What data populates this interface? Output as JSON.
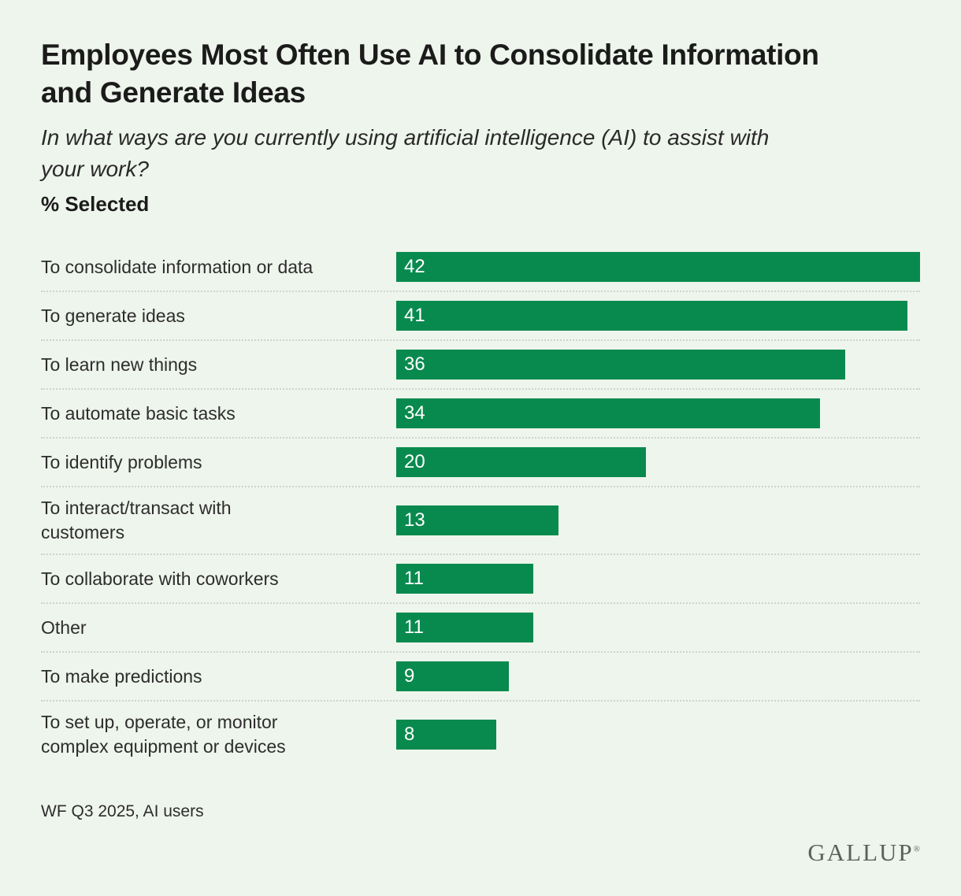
{
  "page": {
    "title_lines": [
      "Employees Most Often Use AI to Consolidate Information",
      "and Generate Ideas"
    ],
    "subtitle_lines": [
      "In what ways are you currently using artificial intelligence (AI) to assist with",
      "your work?"
    ],
    "unit_label": "% Selected",
    "footnote": "WF Q3 2025, AI users",
    "brand": "GALLUP",
    "brand_registered": "®"
  },
  "colors": {
    "background": "#eef5ec",
    "bar": "#088a4e",
    "title_text": "#1b1b1b",
    "label_text": "#2d2d2d",
    "value_text": "#ffffff",
    "separator": "#ccd4cb",
    "brand_text": "#5d615e"
  },
  "chart_data": {
    "type": "bar",
    "orientation": "horizontal",
    "title": "Employees Most Often Use AI to Consolidate Information and Generate Ideas",
    "subtitle": "In what ways are you currently using artificial intelligence (AI) to assist with your work?",
    "ylabel": "",
    "xlabel": "% Selected",
    "xlim": [
      0,
      42
    ],
    "grid": false,
    "legend": false,
    "value_labels_inside_bars": true,
    "categories": [
      "To consolidate information or data",
      "To generate ideas",
      "To learn new things",
      "To automate basic tasks",
      "To identify problems",
      "To interact/transact with customers",
      "To collaborate with coworkers",
      "Other",
      "To make predictions",
      "To set up, operate, or monitor complex equipment or devices"
    ],
    "values": [
      42,
      41,
      36,
      34,
      20,
      13,
      11,
      11,
      9,
      8
    ],
    "label_lines": [
      [
        "To consolidate information or data"
      ],
      [
        "To generate ideas"
      ],
      [
        "To learn new things"
      ],
      [
        "To automate basic tasks"
      ],
      [
        "To identify problems"
      ],
      [
        "To interact/transact with",
        "customers"
      ],
      [
        "To collaborate with coworkers"
      ],
      [
        "Other"
      ],
      [
        "To make predictions"
      ],
      [
        "To set up, operate, or monitor",
        "complex equipment or devices"
      ]
    ]
  }
}
